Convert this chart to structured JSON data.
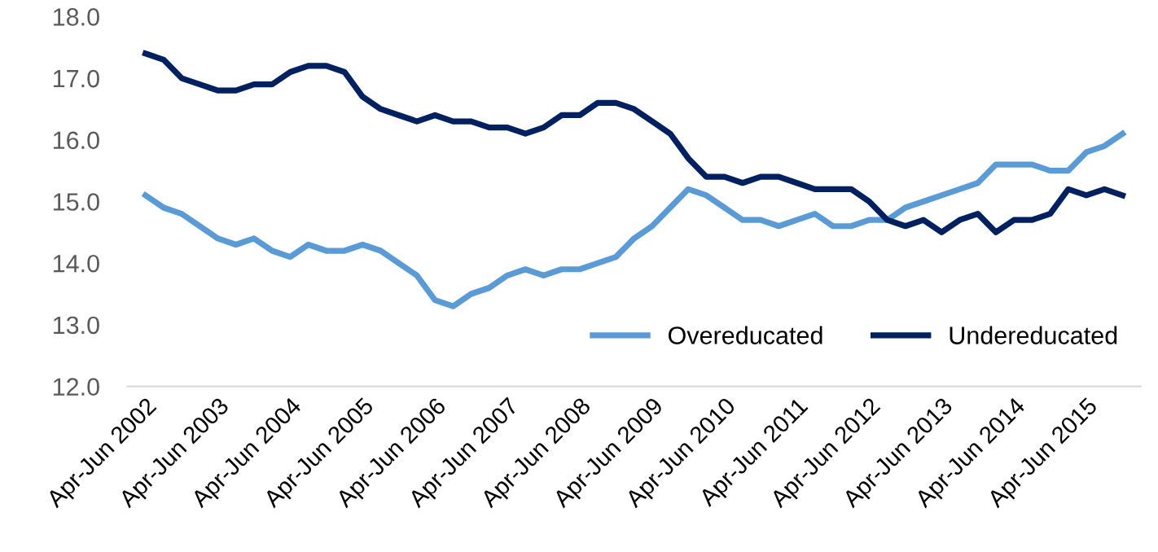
{
  "chart_data": {
    "type": "line",
    "categories": [
      "Apr-Jun 2002",
      null,
      null,
      null,
      "Apr-Jun 2003",
      null,
      null,
      null,
      "Apr-Jun 2004",
      null,
      null,
      null,
      "Apr-Jun 2005",
      null,
      null,
      null,
      "Apr-Jun 2006",
      null,
      null,
      null,
      "Apr-Jun 2007",
      null,
      null,
      null,
      "Apr-Jun 2008",
      null,
      null,
      null,
      "Apr-Jun 2009",
      null,
      null,
      null,
      "Apr-Jun 2010",
      null,
      null,
      null,
      "Apr-Jun 2011",
      null,
      null,
      null,
      "Apr-Jun 2012",
      null,
      null,
      null,
      "Apr-Jun 2013",
      null,
      null,
      null,
      "Apr-Jun 2014",
      null,
      null,
      null,
      "Apr-Jun 2015",
      null,
      null
    ],
    "series": [
      {
        "name": "Overeducated",
        "color": "#5b9bd5",
        "values": [
          15.1,
          14.9,
          14.8,
          14.6,
          14.4,
          14.3,
          14.4,
          14.2,
          14.1,
          14.3,
          14.2,
          14.2,
          14.3,
          14.2,
          14.0,
          13.8,
          13.4,
          13.3,
          13.5,
          13.6,
          13.8,
          13.9,
          13.8,
          13.9,
          13.9,
          14.0,
          14.1,
          14.4,
          14.6,
          14.9,
          15.2,
          15.1,
          14.9,
          14.7,
          14.7,
          14.6,
          14.7,
          14.8,
          14.6,
          14.6,
          14.7,
          14.7,
          14.9,
          15.0,
          15.1,
          15.2,
          15.3,
          15.6,
          15.6,
          15.6,
          15.5,
          15.5,
          15.8,
          15.9,
          16.1
        ]
      },
      {
        "name": "Undereducated",
        "color": "#002060",
        "values": [
          17.4,
          17.3,
          17.0,
          16.9,
          16.8,
          16.8,
          16.9,
          16.9,
          17.1,
          17.2,
          17.2,
          17.1,
          16.7,
          16.5,
          16.4,
          16.3,
          16.4,
          16.3,
          16.3,
          16.2,
          16.2,
          16.1,
          16.2,
          16.4,
          16.4,
          16.6,
          16.6,
          16.5,
          16.3,
          16.1,
          15.7,
          15.4,
          15.4,
          15.3,
          15.4,
          15.4,
          15.3,
          15.2,
          15.2,
          15.2,
          15.0,
          14.7,
          14.6,
          14.7,
          14.5,
          14.7,
          14.8,
          14.5,
          14.7,
          14.7,
          14.8,
          15.2,
          15.1,
          15.2,
          15.1
        ]
      }
    ],
    "ylim": [
      12,
      18
    ],
    "yticks": [
      {
        "value": 12,
        "label": "12.0"
      },
      {
        "value": 13,
        "label": "13.0"
      },
      {
        "value": 14,
        "label": "14.0"
      },
      {
        "value": 15,
        "label": "15.0"
      },
      {
        "value": 16,
        "label": "16.0"
      },
      {
        "value": 17,
        "label": "17.0"
      },
      {
        "value": 18,
        "label": "18.0"
      }
    ],
    "grid": false,
    "legend": "bottom right",
    "marker": "none",
    "line_style": "solid"
  }
}
